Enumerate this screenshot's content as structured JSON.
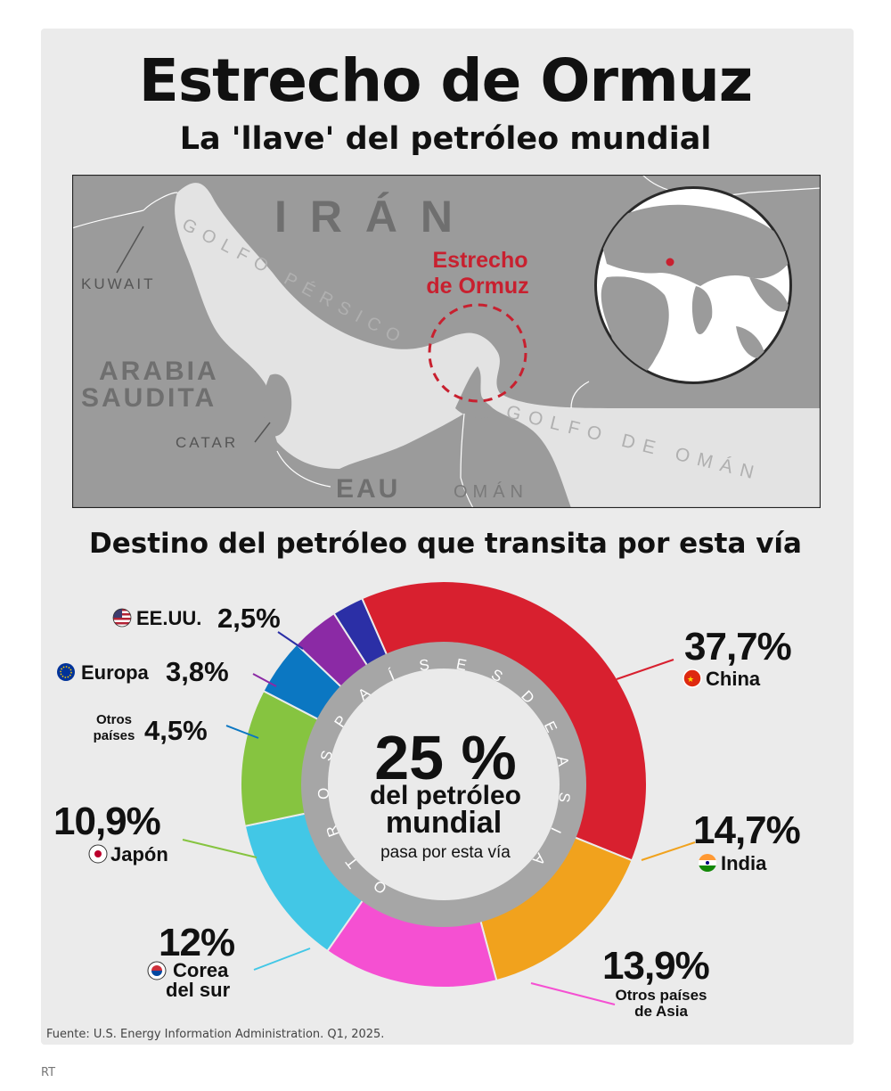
{
  "header": {
    "title": "Estrecho de Ormuz",
    "subtitle": "La 'llave' del petróleo mundial"
  },
  "map": {
    "labels": {
      "iran": "I R Á N",
      "kuwait": "KUWAIT",
      "golfo_persico": "GOLFO PÉRSICO",
      "arabia": "ARABIA",
      "saudita": "SAUDITA",
      "catar": "CATAR",
      "eau": "EAU",
      "oman": "OMÁN",
      "golfo_oman": "GOLFO DE OMÁN",
      "estrecho_1": "Estrecho",
      "estrecho_2": "de Ormuz"
    },
    "colors": {
      "sea": "#e3e3e3",
      "land": "#9b9b9b",
      "highlight": "#c8202f"
    }
  },
  "section": {
    "destination_title": "Destino del petróleo que transita por esta vía"
  },
  "chart_data": {
    "type": "pie",
    "style": "donut",
    "center": {
      "big": "25 %",
      "line1": "del petróleo",
      "line2": "mundial",
      "line3": "pasa por esta vía"
    },
    "inner_ring_label": "OTROS PAÍSES DE ASIA",
    "inner_ring_text": "O T R O S   P A Í S E S   D E   A S I A",
    "slices": [
      {
        "label": "China",
        "value": 37.7,
        "display": "37,7%",
        "color": "#d8202f",
        "flag": "china-flag-icon"
      },
      {
        "label": "India",
        "value": 14.7,
        "display": "14,7%",
        "color": "#f1a21d",
        "flag": "india-flag-icon"
      },
      {
        "label": "Otros países de Asia",
        "value": 13.9,
        "display": "13,9%",
        "color": "#f550d2",
        "flag": ""
      },
      {
        "label": "Corea del sur",
        "value": 12,
        "display": "12%",
        "color": "#42c7e6",
        "flag": "south-korea-flag-icon"
      },
      {
        "label": "Japón",
        "value": 10.9,
        "display": "10,9%",
        "color": "#86c440",
        "flag": "japan-flag-icon"
      },
      {
        "label": "Otros países",
        "value": 4.5,
        "display": "4,5%",
        "color": "#0b77c2",
        "flag": ""
      },
      {
        "label": "Europa",
        "value": 3.8,
        "display": "3,8%",
        "color": "#8b2aa5",
        "flag": "eu-flag-icon"
      },
      {
        "label": "EE.UU.",
        "value": 2.5,
        "display": "2,5%",
        "color": "#2b2fa6",
        "flag": "usa-flag-icon"
      }
    ],
    "labels_text": {
      "otros_paises_1": "Otros",
      "otros_paises_2": "países",
      "otros_asia_1": "Otros países",
      "otros_asia_2": "de Asia",
      "corea_1": "Corea",
      "corea_2": "del sur"
    }
  },
  "footer": {
    "source": "Fuente: U.S. Energy Information Administration. Q1, 2025.",
    "credit": "RT"
  }
}
